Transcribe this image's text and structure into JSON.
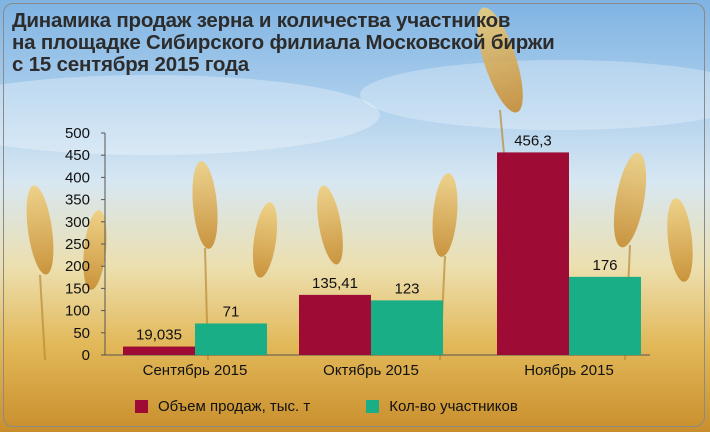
{
  "title_lines": [
    "Динамика продаж зерна и количества участников",
    "на площадке Сибирского филиала Московской биржи",
    "с 15 сентября 2015 года"
  ],
  "colors": {
    "sales": "#9e0b34",
    "participants": "#1aae86",
    "text": "#111111"
  },
  "chart_data": {
    "type": "bar",
    "categories": [
      "Сентябрь 2015",
      "Октябрь 2015",
      "Ноябрь 2015"
    ],
    "series": [
      {
        "name": "Объем продаж, тыс. т",
        "values": [
          19.035,
          135.41,
          456.3
        ],
        "labels": [
          "19,035",
          "135,41",
          "456,3"
        ]
      },
      {
        "name": "Кол-во участников",
        "values": [
          71,
          123,
          176
        ],
        "labels": [
          "71",
          "123",
          "176"
        ]
      }
    ],
    "yticks": [
      "0",
      "50",
      "100",
      "150",
      "200",
      "250",
      "300",
      "350",
      "400",
      "450",
      "500"
    ],
    "ylim": [
      0,
      500
    ],
    "grid": false,
    "legend_position": "bottom"
  }
}
